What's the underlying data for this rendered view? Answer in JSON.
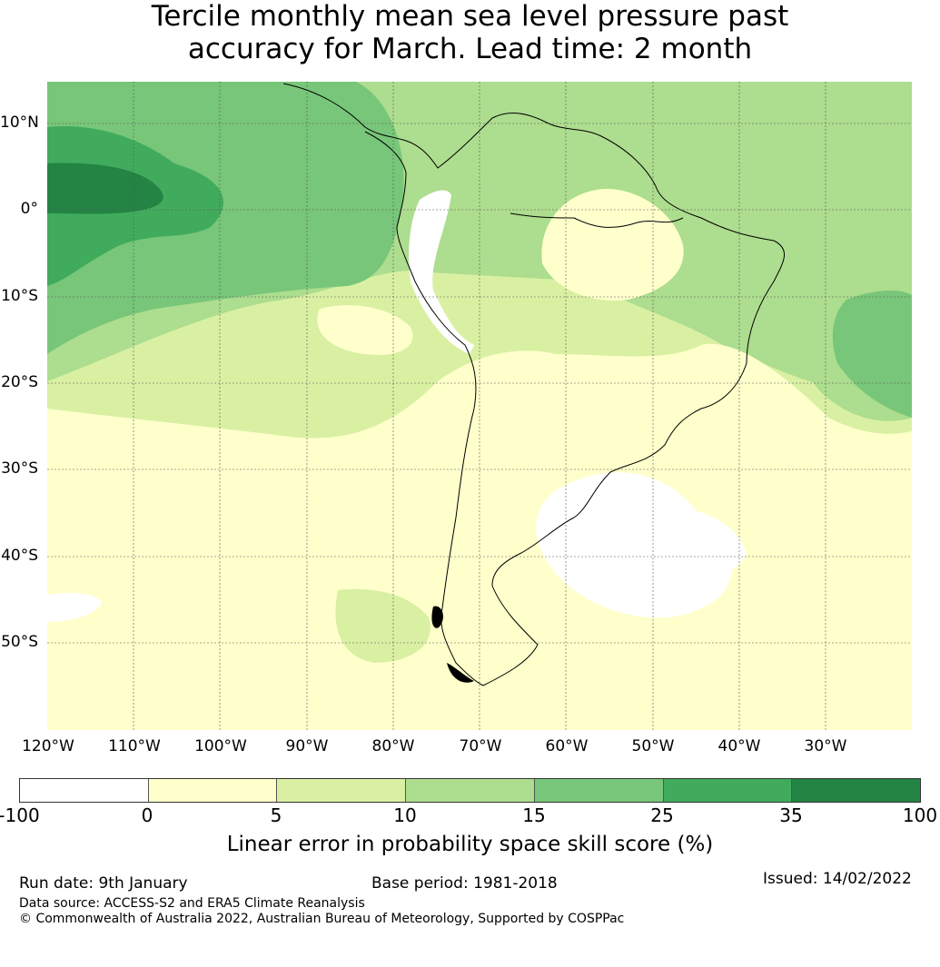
{
  "title": {
    "line1": "Tercile monthly mean sea level pressure past",
    "line2": "accuracy for March. Lead time: 2 month"
  },
  "map": {
    "region": "South America",
    "lat_labels": [
      "10°N",
      "0°",
      "10°S",
      "20°S",
      "30°S",
      "40°S",
      "50°S"
    ],
    "lon_labels": [
      "120°W",
      "110°W",
      "100°W",
      "90°W",
      "80°W",
      "70°W",
      "60°W",
      "50°W",
      "40°W",
      "30°W"
    ]
  },
  "colorbar": {
    "ticks": [
      "-100",
      "0",
      "5",
      "10",
      "15",
      "25",
      "35",
      "100"
    ],
    "colors": [
      "#ffffff",
      "#ffffcc",
      "#d9f0a3",
      "#addd8e",
      "#78c679",
      "#41ab5d",
      "#238443"
    ],
    "label": "Linear error in probability space skill score (%)"
  },
  "footer": {
    "run_date": "Run date: 9th January",
    "base_period": "Base period: 1981-2018",
    "issued": "Issued: 14/02/2022",
    "data_source": "Data source: ACCESS-S2 and ERA5 Climate Reanalysis",
    "copyright": "© Commonwealth of Australia 2022, Australian Bureau of Meteorology, Supported by COSPPac"
  }
}
